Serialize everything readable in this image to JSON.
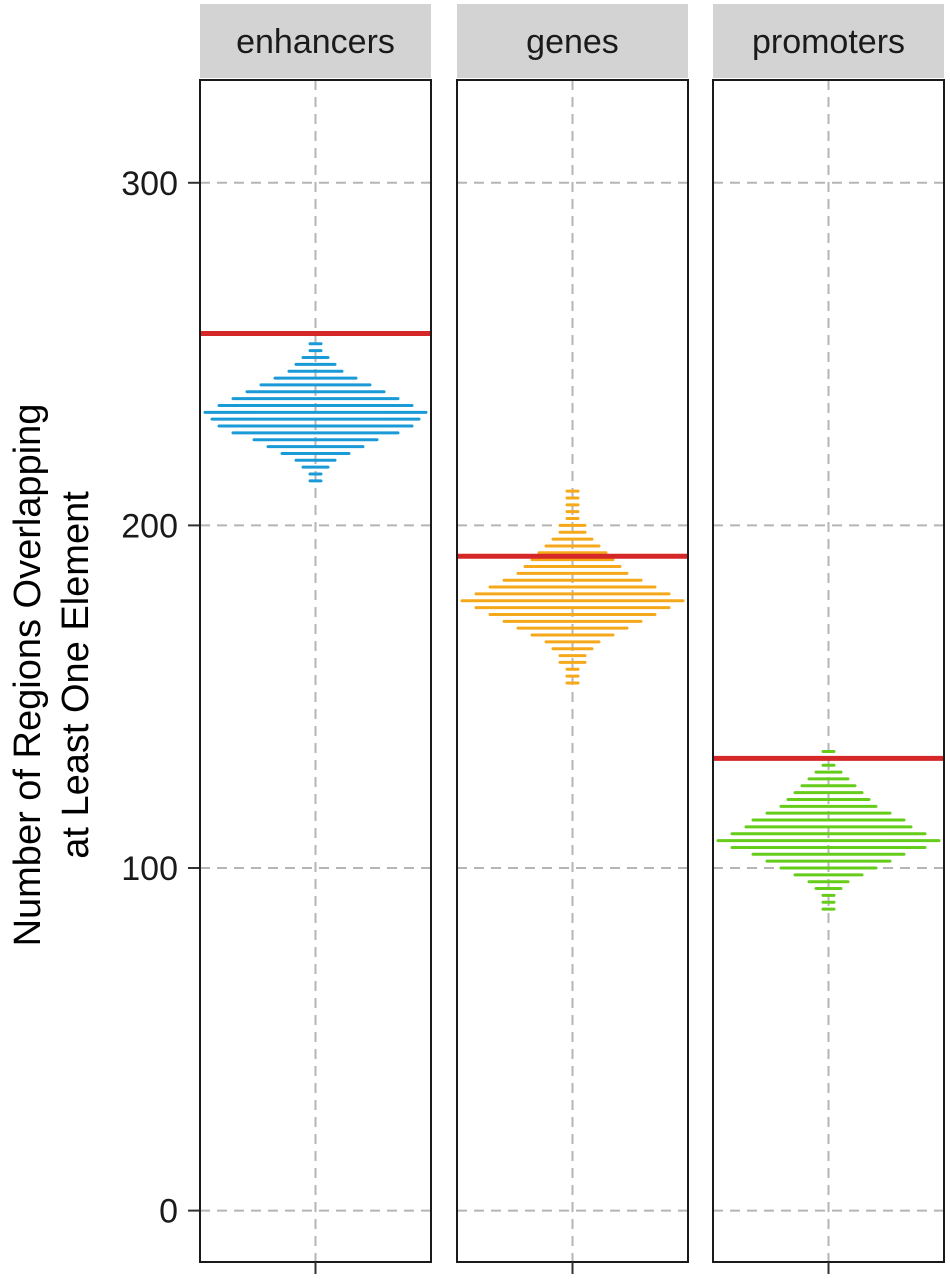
{
  "chart_data": {
    "type": "scatter",
    "style": "faceted dot-strip (horizontal stacked dots) per panel, with red observed-value line",
    "ylabel_line1": "Number of Regions Overlapping",
    "ylabel_line2": "at Least One Element",
    "ylim": [
      -15,
      330
    ],
    "yticks": [
      0,
      100,
      200,
      300
    ],
    "grid": true,
    "grid_style": "dashed",
    "reference_color": "#d62728",
    "panels": [
      {
        "name": "enhancers",
        "color": "#1a9bd7",
        "observed": 256,
        "distribution": {
          "min": 213,
          "max": 254,
          "levels": [
            213,
            215,
            217,
            219,
            221,
            223,
            225,
            227,
            229,
            231,
            233,
            235,
            237,
            239,
            241,
            243,
            245,
            247,
            249,
            251,
            253
          ],
          "counts": [
            1,
            1,
            2,
            3,
            5,
            7,
            9,
            12,
            14,
            15,
            16,
            14,
            12,
            10,
            8,
            6,
            4,
            3,
            2,
            1,
            1
          ]
        }
      },
      {
        "name": "genes",
        "color": "#f5a91a",
        "observed": 191,
        "distribution": {
          "min": 154,
          "max": 211,
          "levels": [
            154,
            156,
            158,
            160,
            162,
            164,
            166,
            168,
            170,
            172,
            174,
            176,
            178,
            180,
            182,
            184,
            186,
            188,
            190,
            192,
            194,
            196,
            198,
            200,
            202,
            204,
            206,
            208,
            210
          ],
          "counts": [
            1,
            1,
            1,
            2,
            2,
            3,
            4,
            6,
            8,
            10,
            12,
            14,
            16,
            14,
            12,
            10,
            8,
            7,
            6,
            5,
            4,
            3,
            2,
            2,
            1,
            1,
            1,
            1,
            1
          ]
        }
      },
      {
        "name": "promoters",
        "color": "#66cc1a",
        "observed": 132,
        "distribution": {
          "min": 88,
          "max": 135,
          "levels": [
            88,
            90,
            92,
            94,
            96,
            98,
            100,
            102,
            104,
            106,
            108,
            110,
            112,
            114,
            116,
            118,
            120,
            122,
            124,
            126,
            128,
            130,
            134
          ],
          "counts": [
            1,
            1,
            1,
            2,
            3,
            5,
            7,
            9,
            11,
            14,
            16,
            14,
            12,
            11,
            9,
            7,
            6,
            5,
            4,
            3,
            2,
            1,
            1
          ]
        }
      }
    ]
  }
}
